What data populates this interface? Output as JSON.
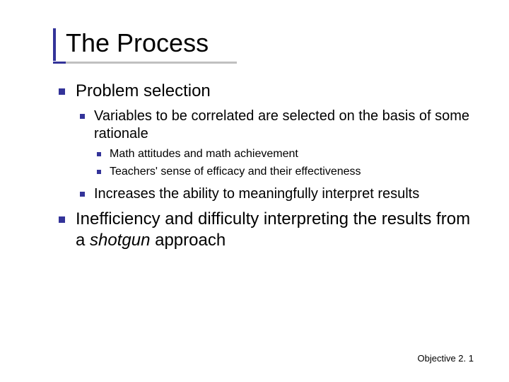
{
  "title": "The Process",
  "bullets": {
    "l1_0": "Problem selection",
    "l2_0": "Variables to be correlated are selected on the basis of some rationale",
    "l3_0": "Math attitudes and math achievement",
    "l3_1": "Teachers' sense of efficacy and their effectiveness",
    "l2_1": "Increases the ability to meaningfully interpret results",
    "l1_1_a": "Inefficiency and difficulty interpreting the results from a ",
    "l1_1_b": "shotgun",
    "l1_1_c": " approach"
  },
  "footer": "Objective 2. 1",
  "colors": {
    "accent": "#333399",
    "rule": "#c0c0c0",
    "text": "#000000",
    "background": "#ffffff"
  },
  "fonts": {
    "title_size": 36,
    "l1_size": 24,
    "l2_size": 20,
    "l3_size": 16,
    "footer_size": 13
  }
}
